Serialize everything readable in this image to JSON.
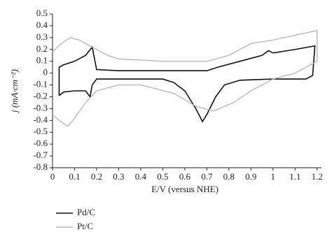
{
  "chart_data": {
    "type": "line",
    "xlabel": "E/V (versus NHE)",
    "ylabel": "j (mA·cm⁻²)",
    "xlim": [
      0,
      1.22
    ],
    "xticks": [
      0,
      0.1,
      0.2,
      0.3,
      0.4,
      0.5,
      0.6,
      0.7,
      0.8,
      0.9,
      1,
      1.1,
      1.2
    ],
    "ylim": [
      -0.8,
      0.5
    ],
    "yticks": [
      0.5,
      0.4,
      0.3,
      0.2,
      0.1,
      0,
      -0.1,
      -0.2,
      -0.3,
      -0.4,
      -0.5,
      -0.6,
      -0.7,
      -0.8
    ],
    "legend": "bottom-left",
    "series": [
      {
        "name": "Pd/C",
        "color": "#111111",
        "x": [
          0.03,
          0.03,
          0.05,
          0.1,
          0.15,
          0.18,
          0.2,
          0.3,
          0.5,
          0.7,
          0.75,
          0.85,
          0.95,
          0.98,
          1.0,
          1.1,
          1.19,
          1.18,
          1.15,
          1.0,
          0.85,
          0.78,
          0.74,
          0.7,
          0.68,
          0.65,
          0.6,
          0.55,
          0.5,
          0.3,
          0.2,
          0.18,
          0.17,
          0.15,
          0.1,
          0.05,
          0.03
        ],
        "values": [
          -0.19,
          0.05,
          0.07,
          0.1,
          0.15,
          0.22,
          0.03,
          0.02,
          0.02,
          0.02,
          0.05,
          0.1,
          0.15,
          0.19,
          0.17,
          0.2,
          0.23,
          -0.02,
          -0.05,
          -0.05,
          -0.06,
          -0.1,
          -0.2,
          -0.35,
          -0.41,
          -0.3,
          -0.15,
          -0.08,
          -0.05,
          -0.05,
          -0.05,
          -0.1,
          -0.2,
          -0.15,
          -0.15,
          -0.16,
          -0.19
        ]
      },
      {
        "name": "Pt/C",
        "color": "#b5b5b5",
        "x": [
          0,
          0.04,
          0.08,
          0.12,
          0.16,
          0.2,
          0.25,
          0.3,
          0.5,
          0.7,
          0.8,
          0.9,
          1.0,
          1.1,
          1.2,
          1.2,
          1.15,
          1.1,
          1.0,
          0.9,
          0.82,
          0.73,
          0.65,
          0.55,
          0.4,
          0.3,
          0.2,
          0.15,
          0.1,
          0.07,
          0.03,
          0
        ],
        "values": [
          0.18,
          0.25,
          0.3,
          0.28,
          0.24,
          0.2,
          0.15,
          0.12,
          0.1,
          0.1,
          0.15,
          0.25,
          0.28,
          0.32,
          0.36,
          0.1,
          0.05,
          0,
          -0.05,
          -0.15,
          -0.25,
          -0.32,
          -0.28,
          -0.17,
          -0.1,
          -0.1,
          -0.15,
          -0.25,
          -0.38,
          -0.45,
          -0.4,
          -0.35
        ]
      }
    ]
  }
}
